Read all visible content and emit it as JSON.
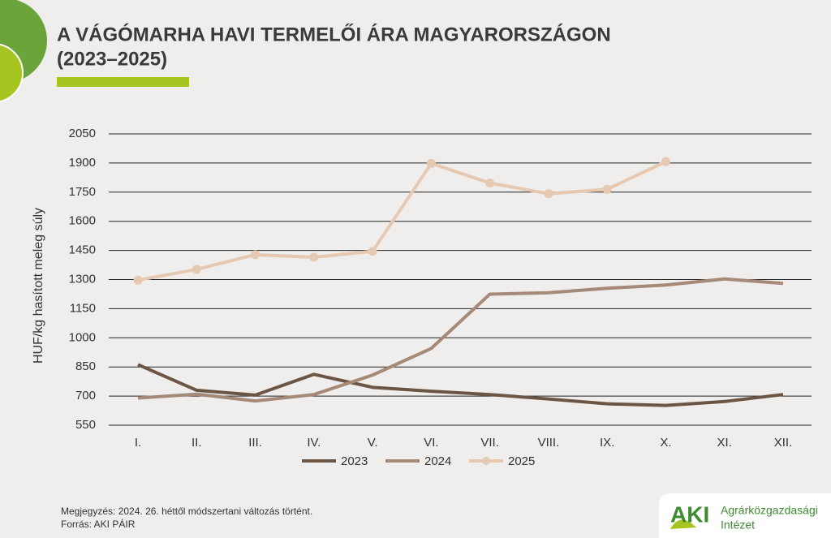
{
  "chart_data": {
    "type": "line",
    "title": [
      "A VÁGÓMARHA HAVI TERMELŐI ÁRA MAGYARORSZÁGON",
      "(2023–2025)"
    ],
    "y_label": "HUF/kg hasított meleg súly",
    "categories": [
      "I.",
      "II.",
      "III.",
      "IV.",
      "V.",
      "VI.",
      "VII.",
      "VIII.",
      "IX.",
      "X.",
      "XI.",
      "XII."
    ],
    "series": [
      {
        "name": "2023",
        "color": "#6b5646",
        "marker": false,
        "values": [
          862,
          730,
          705,
          812,
          745,
          725,
          708,
          685,
          660,
          652,
          672,
          708
        ]
      },
      {
        "name": "2024",
        "color": "#a48a77",
        "marker": false,
        "values": [
          690,
          710,
          675,
          708,
          808,
          945,
          1225,
          1232,
          1255,
          1272,
          1303,
          1280
        ]
      },
      {
        "name": "2025",
        "color": "#e6c9b3",
        "marker": true,
        "values": [
          1297,
          1352,
          1428,
          1415,
          1445,
          1898,
          1797,
          1742,
          1765,
          1907,
          null,
          null
        ]
      }
    ],
    "ylim": [
      550,
      2050
    ],
    "yticks": [
      550,
      700,
      850,
      1000,
      1150,
      1300,
      1450,
      1600,
      1750,
      1900,
      2050
    ],
    "grid": true
  },
  "notes": [
    "Megjegyzés: 2024. 26. héttől módszertani változás történt.",
    "Forrás: AKI PÁIR"
  ],
  "logo": {
    "mark": "AKI",
    "lines": [
      "Agrárközgazdasági",
      "Intézet"
    ]
  }
}
